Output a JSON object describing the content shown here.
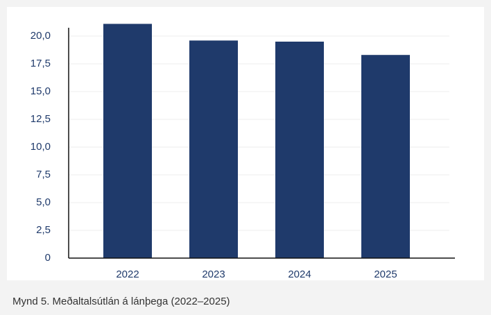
{
  "chart_data": {
    "type": "bar",
    "caption": "Mynd 5. Meðaltalsútlán á lánþega (2022–2025)",
    "categories": [
      "2022",
      "2023",
      "2024",
      "2025"
    ],
    "values": [
      21.1,
      19.6,
      19.5,
      18.3
    ],
    "color": "#1f3a6b",
    "ylim": [
      0,
      21
    ],
    "yticks": [
      0,
      {
        "value": 2.5,
        "label": "2,5"
      },
      {
        "value": 5,
        "label": "5,0"
      },
      {
        "value": 7.5,
        "label": "7,5"
      },
      {
        "value": 10,
        "label": "10,0"
      },
      {
        "value": 12.5,
        "label": "12,5"
      },
      {
        "value": 15,
        "label": "15,0"
      },
      {
        "value": 17.5,
        "label": "17,5"
      },
      {
        "value": 20,
        "label": "20,0"
      }
    ],
    "grid": true
  }
}
